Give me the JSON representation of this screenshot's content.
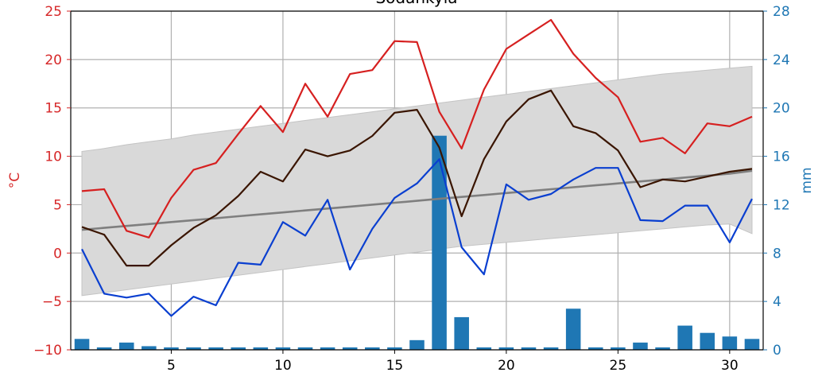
{
  "chart_data": {
    "type": "line",
    "title": "Sodankylä",
    "xlabel": "",
    "ylabel_left": "°C",
    "ylabel_right": "mm",
    "xlim": [
      0.5,
      31.5
    ],
    "ylim_left": [
      -10,
      25
    ],
    "ylim_right": [
      0,
      28
    ],
    "x_ticks": [
      5,
      10,
      15,
      20,
      25,
      30
    ],
    "y_ticks_left": [
      -10,
      -5,
      0,
      5,
      10,
      15,
      20,
      25
    ],
    "y_ticks_right": [
      0,
      4,
      8,
      12,
      16,
      20,
      24,
      28
    ],
    "grid": true,
    "colors": {
      "max_temp": "#d62020",
      "mean_temp": "#3a1500",
      "min_temp": "#0a3fd0",
      "normal_mean": "#7f7f7f",
      "normal_band": "#d9d9d9",
      "precipitation": "#1f77b4",
      "left_axis": "#d62728",
      "right_axis": "#1f77b4"
    },
    "x": [
      1,
      2,
      3,
      4,
      5,
      6,
      7,
      8,
      9,
      10,
      11,
      12,
      13,
      14,
      15,
      16,
      17,
      18,
      19,
      20,
      21,
      22,
      23,
      24,
      25,
      26,
      27,
      28,
      29,
      30,
      31
    ],
    "series": [
      {
        "key": "max_temp",
        "axis": "left",
        "values": [
          6.4,
          6.6,
          2.3,
          1.6,
          5.7,
          8.6,
          9.3,
          12.3,
          15.2,
          12.5,
          17.5,
          14.1,
          18.5,
          18.9,
          21.9,
          21.8,
          14.6,
          10.8,
          16.9,
          21.1,
          22.6,
          24.1,
          20.6,
          18.1,
          16.1,
          11.5,
          11.9,
          10.3,
          13.4,
          13.1,
          14.1
        ]
      },
      {
        "key": "mean_temp",
        "axis": "left",
        "values": [
          2.7,
          1.9,
          -1.3,
          -1.3,
          0.8,
          2.6,
          3.9,
          5.9,
          8.4,
          7.4,
          10.7,
          10.0,
          10.6,
          12.1,
          14.5,
          14.8,
          10.9,
          3.8,
          9.7,
          13.6,
          15.9,
          16.8,
          13.1,
          12.4,
          10.6,
          6.8,
          7.6,
          7.4,
          7.9,
          8.4,
          8.7
        ]
      },
      {
        "key": "min_temp",
        "axis": "left",
        "values": [
          0.4,
          -4.2,
          -4.6,
          -4.2,
          -6.5,
          -4.5,
          -5.4,
          -1.0,
          -1.2,
          3.2,
          1.8,
          5.5,
          -1.7,
          2.5,
          5.7,
          7.2,
          9.7,
          0.6,
          -2.2,
          7.1,
          5.5,
          6.1,
          7.6,
          8.8,
          8.8,
          3.4,
          3.3,
          4.9,
          4.9,
          1.1,
          5.6
        ]
      },
      {
        "key": "normal_mean",
        "axis": "left",
        "values": [
          2.4,
          2.6,
          2.8,
          3.0,
          3.2,
          3.4,
          3.6,
          3.8,
          4.0,
          4.2,
          4.4,
          4.6,
          4.8,
          5.0,
          5.2,
          5.4,
          5.6,
          5.8,
          6.0,
          6.2,
          6.4,
          6.6,
          6.8,
          7.0,
          7.2,
          7.4,
          7.6,
          7.8,
          8.0,
          8.2,
          8.5
        ]
      },
      {
        "key": "normal_band_upper",
        "axis": "left",
        "values": [
          10.5,
          10.8,
          11.2,
          11.5,
          11.8,
          12.2,
          12.5,
          12.8,
          13.1,
          13.4,
          13.7,
          14.0,
          14.3,
          14.6,
          14.9,
          15.2,
          15.5,
          15.8,
          16.1,
          16.4,
          16.7,
          17.0,
          17.3,
          17.6,
          17.9,
          18.2,
          18.5,
          18.7,
          18.9,
          19.1,
          19.3
        ]
      },
      {
        "key": "normal_band_lower",
        "axis": "left",
        "values": [
          -4.4,
          -4.1,
          -3.8,
          -3.5,
          -3.2,
          -2.9,
          -2.6,
          -2.3,
          -2.0,
          -1.7,
          -1.4,
          -1.1,
          -0.8,
          -0.5,
          -0.2,
          0.1,
          0.4,
          0.7,
          0.9,
          1.1,
          1.3,
          1.5,
          1.7,
          1.9,
          2.1,
          2.3,
          2.5,
          2.7,
          2.9,
          3.0,
          2.0
        ]
      },
      {
        "key": "precipitation",
        "axis": "right",
        "kind": "bar",
        "values": [
          0.9,
          0.2,
          0.6,
          0.3,
          0.2,
          0.2,
          0.2,
          0.2,
          0.2,
          0.2,
          0.2,
          0.2,
          0.2,
          0.2,
          0.2,
          0.8,
          17.7,
          2.7,
          0.2,
          0.2,
          0.2,
          0.2,
          3.4,
          0.2,
          0.2,
          0.6,
          0.2,
          2.0,
          1.4,
          1.1,
          0.9
        ]
      }
    ]
  }
}
